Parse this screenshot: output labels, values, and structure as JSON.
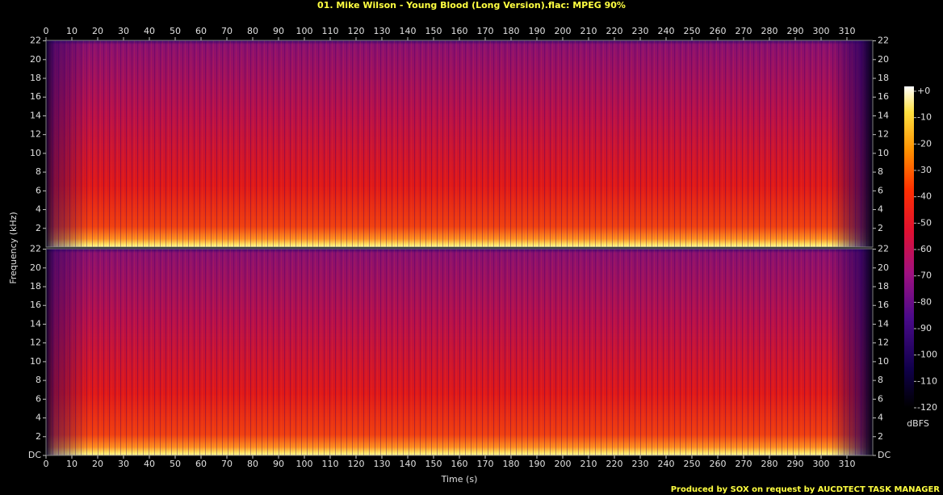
{
  "chart_data": [
    {
      "type": "spectrogram",
      "title": "01. Mike Wilson - Young Blood (Long Version).flac: MPEG 90%",
      "y_label": "Frequency (kHz)",
      "xlim": [
        0,
        320
      ],
      "xticks": [
        0,
        10,
        20,
        30,
        40,
        50,
        60,
        70,
        80,
        90,
        100,
        110,
        120,
        130,
        140,
        150,
        160,
        170,
        180,
        190,
        200,
        210,
        220,
        230,
        240,
        250,
        260,
        270,
        280,
        290,
        300,
        310
      ],
      "ylim": [
        0,
        22.05
      ],
      "yticks": [
        2,
        4,
        6,
        8,
        10,
        12,
        14,
        16,
        18,
        20,
        22
      ]
    },
    {
      "type": "spectrogram",
      "x_label": "Time (s)",
      "xlim": [
        0,
        320
      ],
      "xticks": [
        0,
        10,
        20,
        30,
        40,
        50,
        60,
        70,
        80,
        90,
        100,
        110,
        120,
        130,
        140,
        150,
        160,
        170,
        180,
        190,
        200,
        210,
        220,
        230,
        240,
        250,
        260,
        270,
        280,
        290,
        300,
        310
      ],
      "ylim": [
        0,
        22.05
      ],
      "yticks": [
        {
          "value": 0,
          "label": "DC"
        },
        2,
        4,
        6,
        8,
        10,
        12,
        14,
        16,
        18,
        20,
        22
      ]
    }
  ],
  "colorbar": {
    "label": "dBFS",
    "lim": [
      -120,
      0
    ],
    "ticks": [
      {
        "value": 0,
        "label": "+0"
      },
      -10,
      -20,
      -30,
      -40,
      -50,
      -60,
      -70,
      -80,
      -90,
      -100,
      -110,
      -120
    ]
  },
  "footer": "Produced by SOX on request by AUCDTECT TASK MANAGER"
}
